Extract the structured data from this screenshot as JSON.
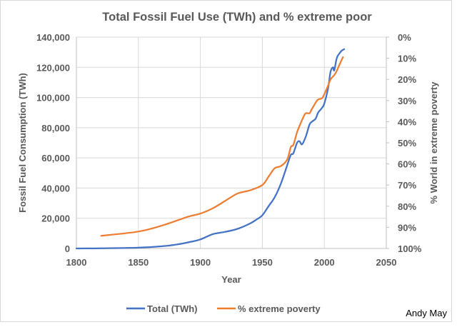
{
  "chart_data": {
    "type": "line",
    "title": "Total Fossil Fuel Use (TWh) and % extreme poor",
    "xlabel": "Year",
    "ylabel": "Fossil Fuel Consumption (TWh)",
    "y2label": "% World in extreme poverty",
    "xlim": [
      1800,
      2050
    ],
    "ylim": [
      0,
      140000
    ],
    "y2lim": [
      0,
      100
    ],
    "y2_reversed": true,
    "grid": true,
    "legend_position": "bottom",
    "x_ticks": [
      "1800",
      "1850",
      "1900",
      "1950",
      "2000",
      "2050"
    ],
    "x_tick_values": [
      1800,
      1850,
      1900,
      1950,
      2000,
      2050
    ],
    "y_ticks": [
      "0",
      "20,000",
      "40,000",
      "60,000",
      "80,000",
      "100,000",
      "120,000",
      "140,000"
    ],
    "y_tick_values": [
      0,
      20000,
      40000,
      60000,
      80000,
      100000,
      120000,
      140000
    ],
    "y2_ticks": [
      "0%",
      "10%",
      "20%",
      "30%",
      "40%",
      "50%",
      "60%",
      "70%",
      "80%",
      "90%",
      "100%"
    ],
    "y2_tick_values": [
      0,
      10,
      20,
      30,
      40,
      50,
      60,
      70,
      80,
      90,
      100
    ],
    "series": [
      {
        "name": "Total (TWh)",
        "axis": "left",
        "color": "#4472C4",
        "x": [
          1800,
          1820,
          1850,
          1870,
          1880,
          1890,
          1900,
          1910,
          1920,
          1930,
          1940,
          1945,
          1950,
          1955,
          1960,
          1965,
          1970,
          1973,
          1975,
          1978,
          1980,
          1982,
          1985,
          1988,
          1990,
          1993,
          1995,
          1998,
          2000,
          2003,
          2005,
          2007,
          2008,
          2010,
          2012,
          2014,
          2016
        ],
        "values": [
          0,
          100,
          500,
          1500,
          2500,
          4000,
          6000,
          9500,
          11000,
          13000,
          16500,
          19000,
          22000,
          28000,
          34000,
          43000,
          55000,
          62000,
          63000,
          70000,
          71000,
          69000,
          74000,
          82000,
          84000,
          86000,
          90000,
          93000,
          96000,
          106000,
          117000,
          120000,
          118000,
          126000,
          129000,
          131000,
          132000
        ]
      },
      {
        "name": "% extreme poverty",
        "axis": "right",
        "color": "#ED7D31",
        "x": [
          1820,
          1850,
          1870,
          1890,
          1900,
          1910,
          1920,
          1930,
          1940,
          1950,
          1955,
          1960,
          1965,
          1970,
          1973,
          1975,
          1978,
          1980,
          1983,
          1985,
          1988,
          1990,
          1993,
          1995,
          1998,
          2000,
          2003,
          2005,
          2008,
          2010,
          2013,
          2015
        ],
        "values": [
          94,
          92,
          89,
          85,
          83.5,
          81,
          77.5,
          74,
          72.5,
          70,
          66,
          62,
          61,
          58,
          52,
          51,
          45,
          42,
          38,
          36,
          36,
          34,
          31,
          29.5,
          29,
          27,
          23,
          20,
          18,
          16,
          12,
          9.5
        ]
      }
    ],
    "legend": [
      {
        "label": "Total (TWh)",
        "color": "#4472C4"
      },
      {
        "label": "% extreme poverty",
        "color": "#ED7D31"
      }
    ],
    "annotations": [
      "Andy May"
    ]
  }
}
